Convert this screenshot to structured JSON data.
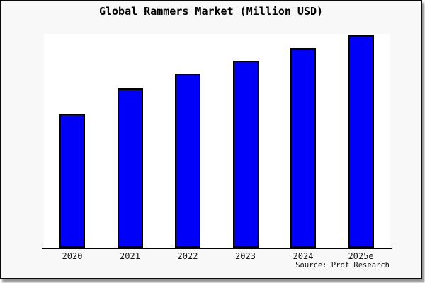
{
  "chart_data": {
    "type": "bar",
    "title": "Global Rammers Market (Million USD)",
    "categories": [
      "2020",
      "2021",
      "2022",
      "2023",
      "2024",
      "2025e"
    ],
    "values": [
      63,
      75,
      82,
      88,
      94,
      100
    ],
    "unit": "Million USD",
    "xlabel": "",
    "ylabel": "",
    "ylim": [
      0,
      105
    ],
    "y_axis_ticks_visible": false,
    "grid": false,
    "legend": false,
    "source": "Source: Prof Research",
    "bar_color": "#0000fa",
    "bar_border_color": "#000000",
    "frame_background_color": "#f8f8f8",
    "plot_background_color": "#ffffff",
    "frame_border_color": "#0a0a0a"
  }
}
